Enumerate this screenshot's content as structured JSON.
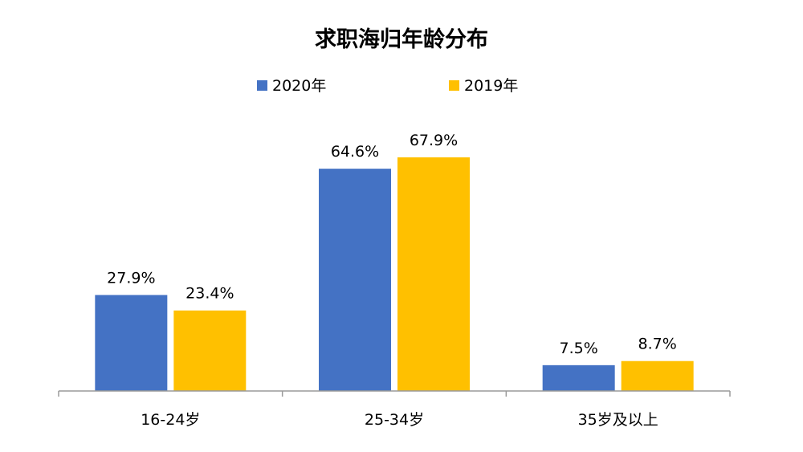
{
  "chart_data": {
    "type": "bar",
    "title": "求职海归年龄分布",
    "categories": [
      "16-24岁",
      "25-34岁",
      "35岁及以上"
    ],
    "series": [
      {
        "name": "2020年",
        "color": "#4472C4",
        "values": [
          27.9,
          64.6,
          7.5
        ],
        "labels": [
          "27.9%",
          "64.6%",
          "7.5%"
        ]
      },
      {
        "name": "2019年",
        "color": "#FFC000",
        "values": [
          23.4,
          67.9,
          8.7
        ],
        "labels": [
          "23.4%",
          "67.9%",
          "8.7%"
        ]
      }
    ],
    "ylim": [
      0,
      70
    ],
    "value_unit": "%",
    "grid": false,
    "legend_position": "top"
  }
}
